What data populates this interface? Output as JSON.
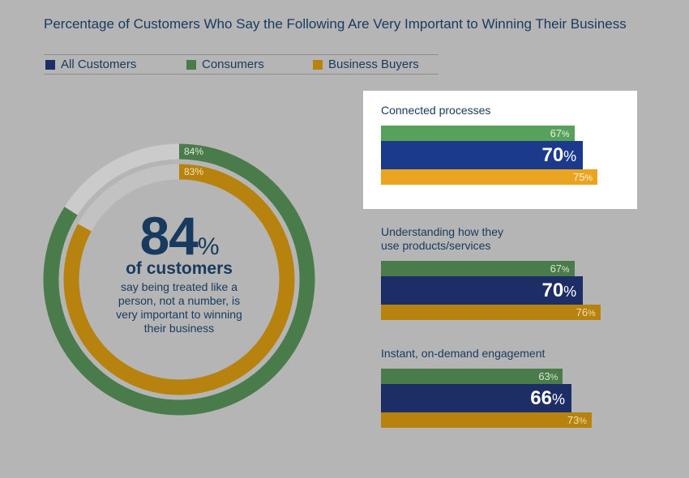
{
  "title": "Percentage of Customers Who Say the Following Are Very Important to Winning Their Business",
  "legend": [
    {
      "label": "All Customers",
      "color": "#1d2d65"
    },
    {
      "label": "Consumers",
      "color": "#4a7b4a"
    },
    {
      "label": "Business Buyers",
      "color": "#b7820e"
    }
  ],
  "donut": {
    "big_value": "84",
    "big_unit": "%",
    "headline": "of customers",
    "description": "say being treated like a person, not a number, is very important to winning their business"
  },
  "chart_data": [
    {
      "type": "pie",
      "subtype": "donut",
      "series": [
        {
          "name": "Consumers",
          "value": 84,
          "label": "84%",
          "color": "#4a7b4a"
        },
        {
          "name": "Business Buyers",
          "value": 83,
          "label": "83%",
          "color": "#b7820e"
        }
      ],
      "center_value": 84,
      "center_text": "of customers say being treated like a person, not a number, is very important to winning their business"
    },
    {
      "type": "bar",
      "orientation": "horizontal",
      "categories": [
        "Connected processes",
        "Understanding how they use products/services",
        "Instant, on-demand engagement"
      ],
      "series": [
        {
          "name": "Consumers",
          "values": [
            67,
            67,
            63
          ],
          "color": "#4a7b4a"
        },
        {
          "name": "All Customers",
          "values": [
            70,
            70,
            66
          ],
          "color": "#1d2d65"
        },
        {
          "name": "Business Buyers",
          "values": [
            75,
            76,
            73
          ],
          "color": "#b7820e"
        }
      ],
      "highlighted_category": "Connected processes",
      "xlim": [
        0,
        100
      ]
    }
  ],
  "groups": [
    {
      "label_lines": [
        "Connected processes"
      ],
      "highlight": true,
      "consumers": {
        "value": "67",
        "unit": "%"
      },
      "all": {
        "value": "70",
        "unit": "%"
      },
      "business": {
        "value": "75",
        "unit": "%"
      }
    },
    {
      "label_lines": [
        "Understanding how they",
        "use products/services"
      ],
      "highlight": false,
      "consumers": {
        "value": "67",
        "unit": "%"
      },
      "all": {
        "value": "70",
        "unit": "%"
      },
      "business": {
        "value": "76",
        "unit": "%"
      }
    },
    {
      "label_lines": [
        "Instant, on-demand engagement"
      ],
      "highlight": false,
      "consumers": {
        "value": "63",
        "unit": "%"
      },
      "all": {
        "value": "66",
        "unit": "%"
      },
      "business": {
        "value": "73",
        "unit": "%"
      }
    }
  ]
}
